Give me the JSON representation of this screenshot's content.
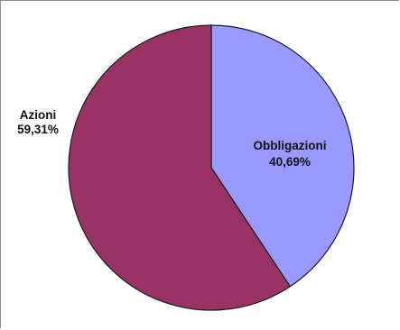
{
  "chart_data": {
    "type": "pie",
    "title": "",
    "slices": [
      {
        "label": "Obbligazioni",
        "value": 40.69,
        "value_label": "40,69%",
        "color": "#9999ff"
      },
      {
        "label": "Azioni",
        "value": 59.31,
        "value_label": "59,31%",
        "color": "#993366"
      }
    ],
    "start_angle": "12 o'clock",
    "direction": "clockwise",
    "legend": "none"
  }
}
